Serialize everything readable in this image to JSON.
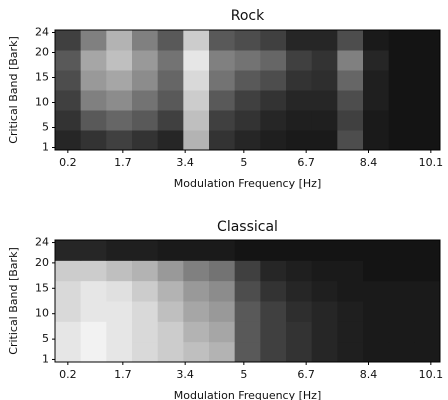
{
  "chart_data": [
    {
      "type": "heatmap",
      "title": "Rock",
      "x_label": "Modulation Frequency [Hz]",
      "y_label": "Critical Band [Bark]",
      "xlim": [
        -0.15,
        10.35
      ],
      "ylim": [
        0.5,
        24.5
      ],
      "zlim": [
        0,
        100
      ],
      "colormap": "gray",
      "xticks": [
        0.2,
        1.7,
        3.4,
        5,
        6.7,
        8.4,
        10.1
      ],
      "yticks": [
        1,
        5,
        10,
        15,
        20,
        24
      ],
      "z": [
        [
          15,
          20,
          25,
          20,
          15,
          70,
          20,
          15,
          12,
          10,
          10,
          30,
          10,
          8,
          8
        ],
        [
          20,
          35,
          40,
          35,
          25,
          75,
          25,
          20,
          15,
          12,
          12,
          25,
          10,
          8,
          8
        ],
        [
          25,
          50,
          55,
          45,
          35,
          80,
          35,
          25,
          20,
          15,
          15,
          30,
          12,
          8,
          8
        ],
        [
          30,
          60,
          65,
          55,
          40,
          85,
          45,
          35,
          30,
          20,
          18,
          40,
          12,
          8,
          8
        ],
        [
          35,
          65,
          75,
          60,
          45,
          90,
          50,
          45,
          40,
          25,
          20,
          50,
          15,
          8,
          8
        ],
        [
          25,
          50,
          70,
          50,
          35,
          80,
          35,
          30,
          25,
          15,
          15,
          30,
          10,
          8,
          8
        ]
      ]
    },
    {
      "type": "heatmap",
      "title": "Classical",
      "x_label": "Modulation Frequency [Hz]",
      "y_label": "Critical Band [Bark]",
      "xlim": [
        -0.15,
        10.35
      ],
      "ylim": [
        0.5,
        24.5
      ],
      "zlim": [
        0,
        100
      ],
      "colormap": "gray",
      "xticks": [
        0.2,
        1.7,
        3.4,
        5,
        6.7,
        8.4,
        10.1
      ],
      "yticks": [
        1,
        5,
        10,
        15,
        20,
        24
      ],
      "z": [
        [
          90,
          95,
          90,
          85,
          80,
          75,
          70,
          35,
          25,
          20,
          15,
          12,
          10,
          10,
          10
        ],
        [
          90,
          95,
          90,
          85,
          80,
          70,
          65,
          35,
          25,
          20,
          15,
          12,
          10,
          10,
          10
        ],
        [
          85,
          90,
          90,
          85,
          75,
          65,
          60,
          35,
          25,
          18,
          15,
          12,
          10,
          10,
          10
        ],
        [
          85,
          90,
          88,
          80,
          70,
          60,
          55,
          30,
          20,
          15,
          12,
          10,
          10,
          10,
          10
        ],
        [
          80,
          80,
          75,
          70,
          60,
          50,
          45,
          25,
          15,
          12,
          10,
          10,
          8,
          8,
          8
        ],
        [
          15,
          15,
          12,
          12,
          10,
          10,
          10,
          8,
          8,
          8,
          8,
          8,
          8,
          8,
          8
        ]
      ]
    }
  ]
}
